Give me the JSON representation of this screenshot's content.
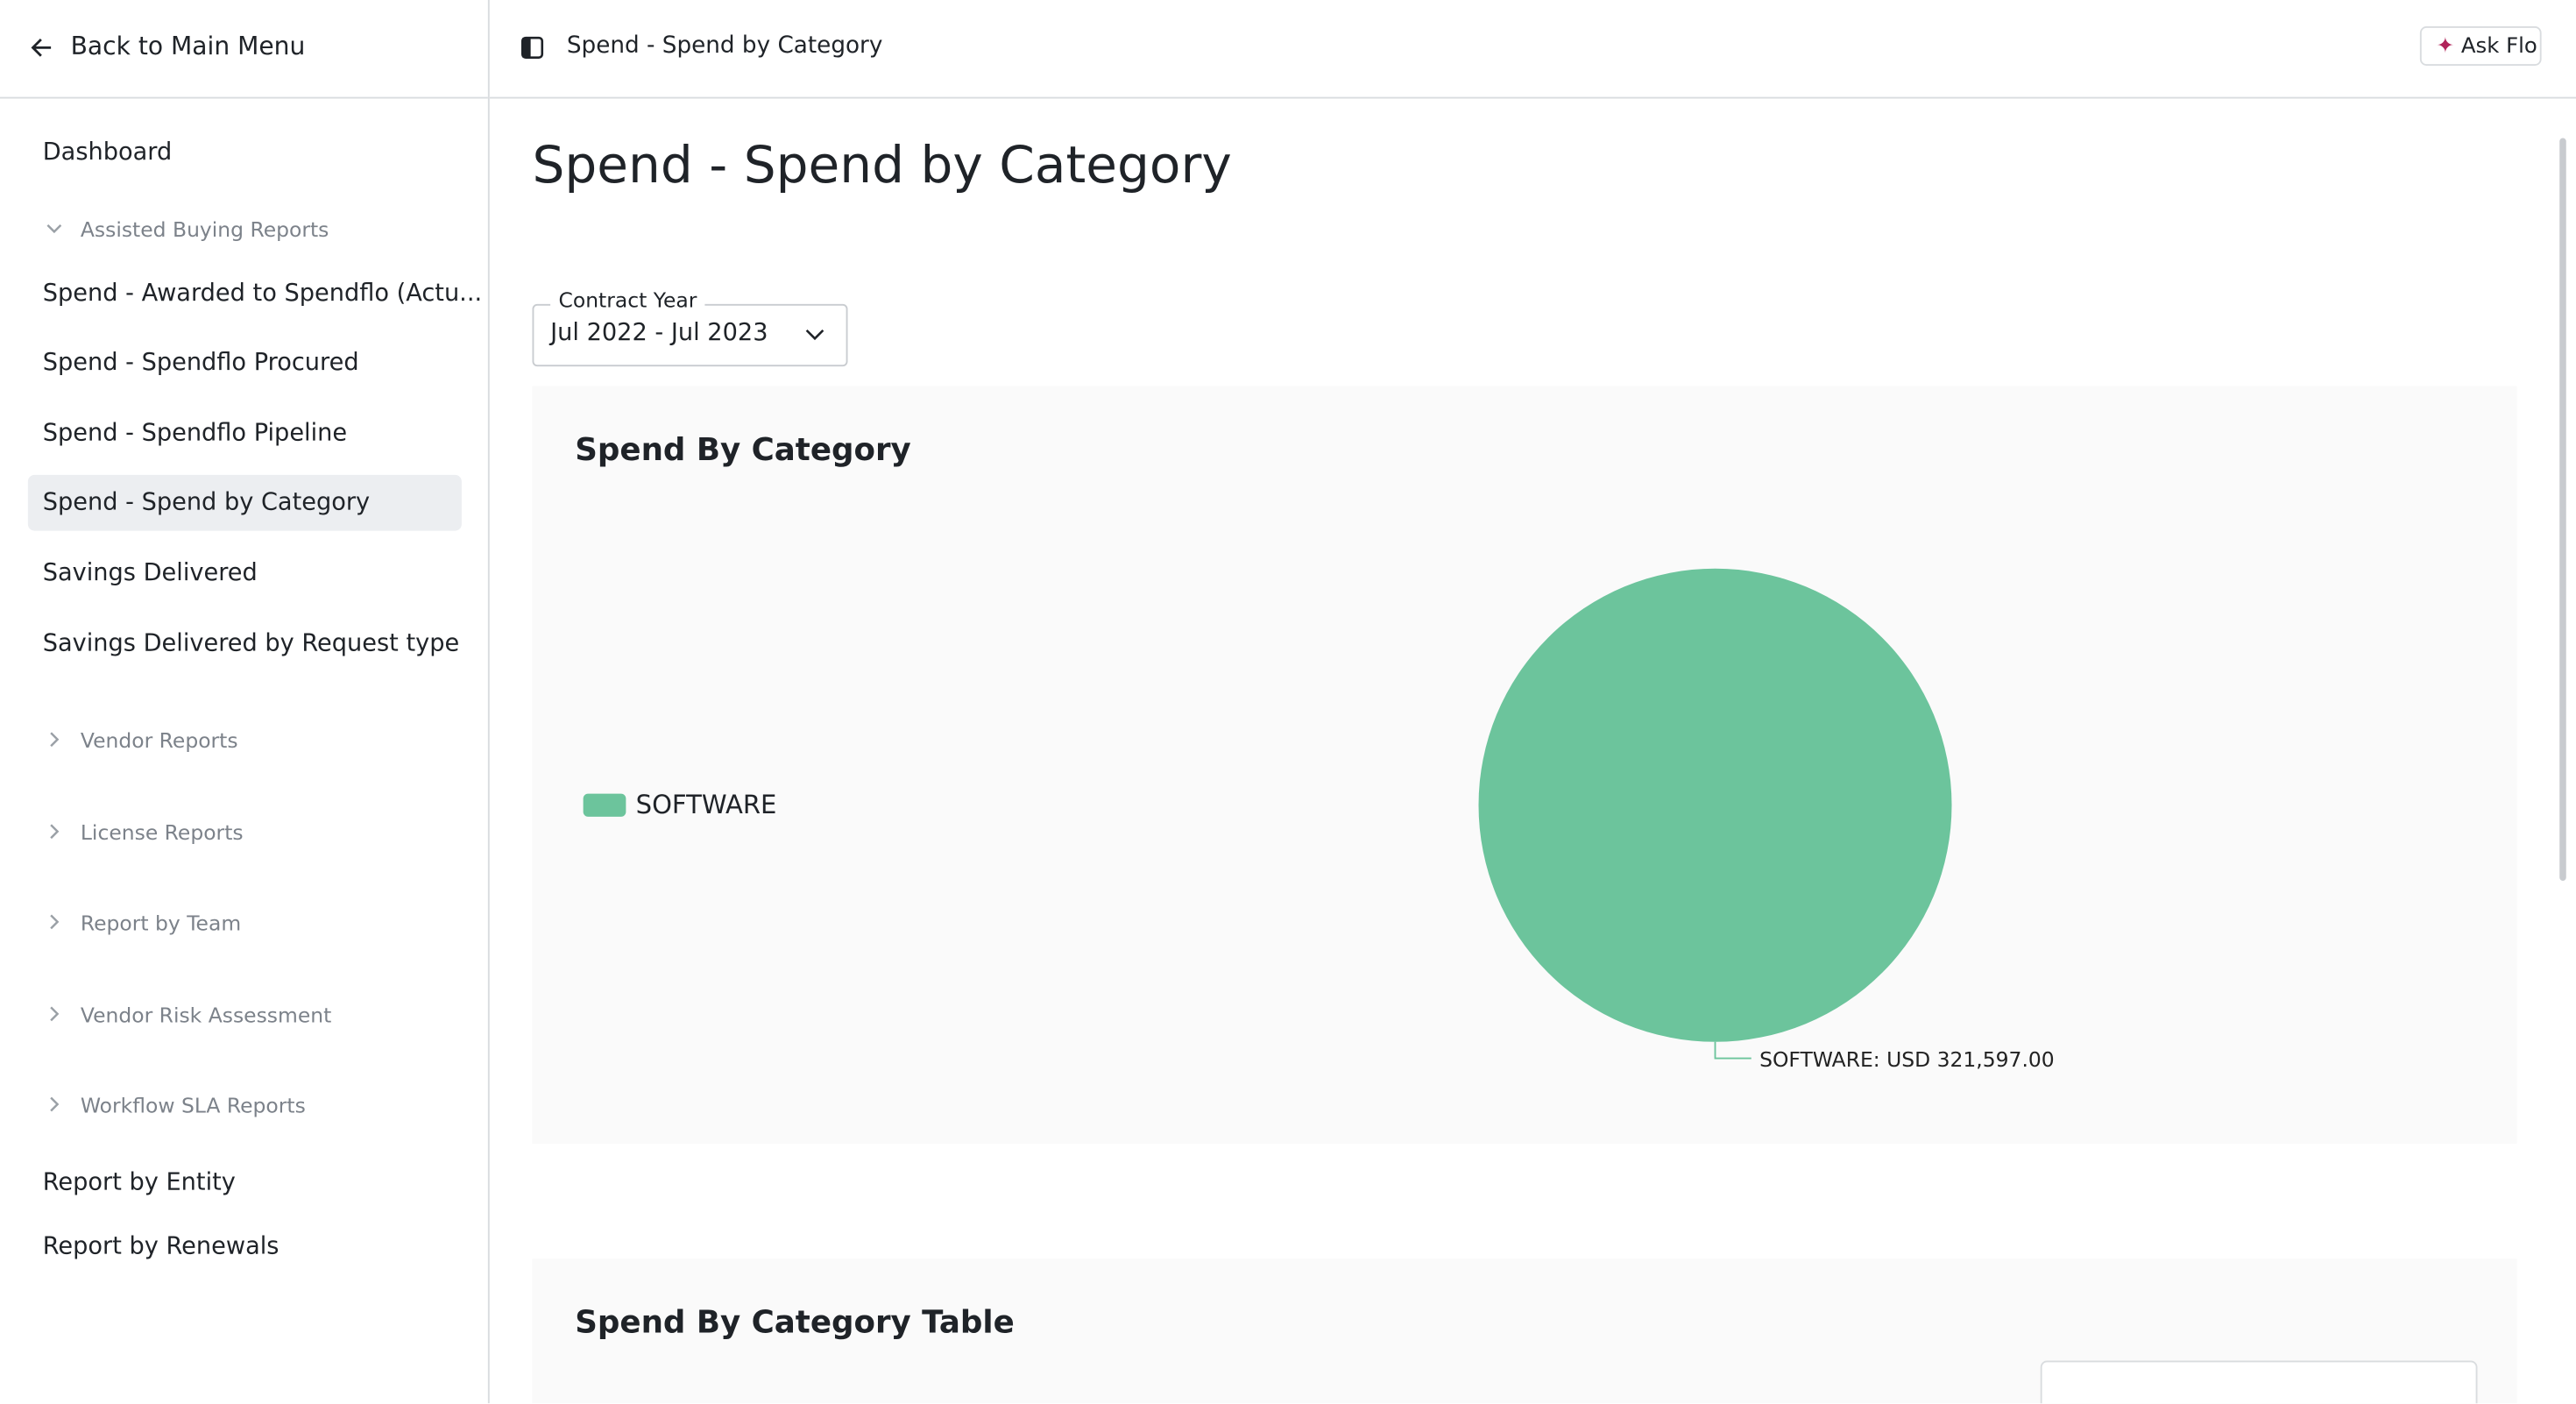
{
  "sidebar": {
    "back": "Back to Main Menu",
    "items": [
      {
        "label": "Dashboard",
        "type": "link"
      },
      {
        "label": "Assisted Buying Reports",
        "type": "group",
        "expanded": true
      },
      {
        "label": "Spend - Awarded to Spendflo (Actu...",
        "type": "link"
      },
      {
        "label": "Spend - Spendflo Procured",
        "type": "link"
      },
      {
        "label": "Spend - Spendflo Pipeline",
        "type": "link"
      },
      {
        "label": "Spend - Spend by Category",
        "type": "link",
        "selected": true
      },
      {
        "label": "Savings Delivered",
        "type": "link"
      },
      {
        "label": "Savings Delivered by Request type",
        "type": "link"
      },
      {
        "label": "Vendor Reports",
        "type": "group",
        "expanded": false
      },
      {
        "label": "License Reports",
        "type": "group",
        "expanded": false
      },
      {
        "label": "Report by Team",
        "type": "group",
        "expanded": false
      },
      {
        "label": "Vendor Risk Assessment",
        "type": "group",
        "expanded": false
      },
      {
        "label": "Workflow SLA Reports",
        "type": "group",
        "expanded": false
      },
      {
        "label": "Report by Entity",
        "type": "link"
      },
      {
        "label": "Report by Renewals",
        "type": "link"
      }
    ]
  },
  "topbar": {
    "breadcrumb": "Spend - Spend by Category",
    "ask": "Ask Flo"
  },
  "page": {
    "title": "Spend - Spend by Category",
    "filter": {
      "label": "Contract Year",
      "value": "Jul 2022 - Jul 2023"
    }
  },
  "chart_data": {
    "type": "pie",
    "title": "Spend By Category",
    "categories": [
      "SOFTWARE"
    ],
    "values": [
      321597
    ],
    "value_labels": [
      "SOFTWARE: USD 321,597.00"
    ],
    "colors": [
      "#6cc49c"
    ],
    "legend": "left"
  },
  "table": {
    "title": "Spend By Category Table"
  }
}
